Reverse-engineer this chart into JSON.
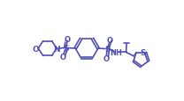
{
  "background_color": "#ffffff",
  "line_color": "#5050b0",
  "line_width": 1.2,
  "figsize": [
    2.08,
    1.16
  ],
  "dpi": 100,
  "xlim": [
    0,
    20.8
  ],
  "ylim": [
    0,
    11.6
  ]
}
